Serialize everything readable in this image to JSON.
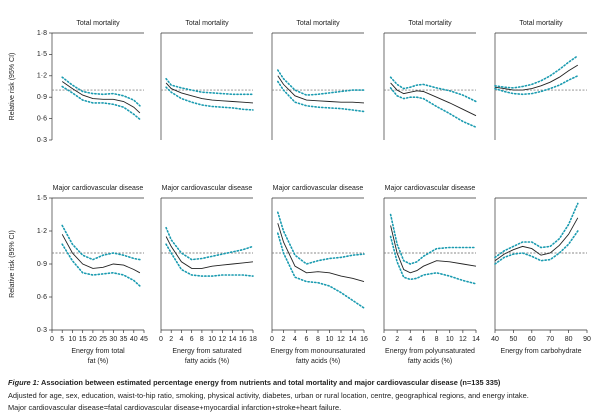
{
  "chart_data": [
    {
      "type": "line",
      "title": "Total mortality",
      "ylabel": "Relative risk (95% CI)",
      "x": [
        5,
        10,
        15,
        20,
        25,
        30,
        35,
        40,
        43
      ],
      "xlim": [
        0,
        45
      ],
      "ylim": [
        0.3,
        1.8
      ],
      "yticks": [
        {
          "value": 0.3,
          "label": "0·3"
        },
        {
          "value": 0.6,
          "label": "0·6"
        },
        {
          "value": 0.9,
          "label": "0·9"
        },
        {
          "value": 1.2,
          "label": "1·2"
        },
        {
          "value": 1.5,
          "label": "1·5"
        },
        {
          "value": 1.8,
          "label": "1·8"
        }
      ],
      "reference_line": 1,
      "series": [
        {
          "color": "#222222",
          "style": "solid",
          "values": [
            1.12,
            1.02,
            0.93,
            0.88,
            0.87,
            0.87,
            0.84,
            0.76,
            0.68
          ]
        },
        {
          "color": "#1a9bb0",
          "style": "dotted",
          "values": [
            1.05,
            0.96,
            0.86,
            0.82,
            0.82,
            0.8,
            0.76,
            0.66,
            0.59
          ]
        },
        {
          "color": "#1a9bb0",
          "style": "dotted",
          "values": [
            1.18,
            1.07,
            0.98,
            0.95,
            0.94,
            0.95,
            0.92,
            0.86,
            0.78
          ]
        }
      ]
    },
    {
      "type": "line",
      "title": "Total mortality",
      "x": [
        1,
        2,
        4,
        6,
        8,
        10,
        12,
        14,
        16,
        18
      ],
      "xlim": [
        0,
        18
      ],
      "ylim": [
        0.3,
        1.8
      ],
      "reference_line": 1,
      "series": [
        {
          "color": "#222222",
          "style": "solid",
          "values": [
            1.1,
            1.02,
            0.96,
            0.92,
            0.88,
            0.86,
            0.85,
            0.84,
            0.83,
            0.82
          ]
        },
        {
          "color": "#1a9bb0",
          "style": "dotted",
          "values": [
            1.04,
            0.97,
            0.88,
            0.83,
            0.79,
            0.77,
            0.76,
            0.75,
            0.73,
            0.72
          ]
        },
        {
          "color": "#1a9bb0",
          "style": "dotted",
          "values": [
            1.16,
            1.07,
            1.03,
            1.0,
            0.97,
            0.96,
            0.95,
            0.94,
            0.94,
            0.94
          ]
        }
      ]
    },
    {
      "type": "line",
      "title": "Total mortality",
      "x": [
        1,
        2,
        4,
        6,
        8,
        10,
        12,
        14,
        16
      ],
      "xlim": [
        0,
        16
      ],
      "ylim": [
        0.3,
        1.8
      ],
      "reference_line": 1,
      "series": [
        {
          "color": "#222222",
          "style": "solid",
          "values": [
            1.2,
            1.08,
            0.92,
            0.86,
            0.85,
            0.84,
            0.83,
            0.83,
            0.82
          ]
        },
        {
          "color": "#1a9bb0",
          "style": "dotted",
          "values": [
            1.12,
            1.0,
            0.83,
            0.78,
            0.76,
            0.75,
            0.74,
            0.72,
            0.7
          ]
        },
        {
          "color": "#1a9bb0",
          "style": "dotted",
          "values": [
            1.28,
            1.16,
            1.0,
            0.93,
            0.94,
            0.96,
            0.98,
            1.0,
            1.0
          ]
        }
      ]
    },
    {
      "type": "line",
      "title": "Total mortality",
      "x": [
        1,
        2,
        3,
        4,
        5,
        6,
        8,
        10,
        12,
        14
      ],
      "xlim": [
        0,
        14
      ],
      "ylim": [
        0.3,
        1.8
      ],
      "reference_line": 1,
      "series": [
        {
          "color": "#222222",
          "style": "solid",
          "values": [
            1.1,
            1.0,
            0.95,
            0.97,
            0.99,
            0.98,
            0.9,
            0.82,
            0.73,
            0.64
          ]
        },
        {
          "color": "#1a9bb0",
          "style": "dotted",
          "values": [
            1.03,
            0.92,
            0.88,
            0.9,
            0.9,
            0.88,
            0.77,
            0.67,
            0.56,
            0.48
          ]
        },
        {
          "color": "#1a9bb0",
          "style": "dotted",
          "values": [
            1.18,
            1.08,
            1.02,
            1.04,
            1.07,
            1.08,
            1.03,
            0.99,
            0.93,
            0.84
          ]
        }
      ]
    },
    {
      "type": "line",
      "title": "Total mortality",
      "x": [
        40,
        45,
        50,
        55,
        60,
        65,
        70,
        75,
        80,
        85
      ],
      "xlim": [
        40,
        90
      ],
      "ylim": [
        0.3,
        1.8
      ],
      "reference_line": 1,
      "series": [
        {
          "color": "#222222",
          "style": "solid",
          "values": [
            1.04,
            1.02,
            1.0,
            1.0,
            1.02,
            1.06,
            1.11,
            1.18,
            1.27,
            1.35
          ]
        },
        {
          "color": "#1a9bb0",
          "style": "dotted",
          "values": [
            1.02,
            0.98,
            0.95,
            0.94,
            0.95,
            0.98,
            1.02,
            1.07,
            1.14,
            1.2
          ]
        },
        {
          "color": "#1a9bb0",
          "style": "dotted",
          "values": [
            1.06,
            1.04,
            1.03,
            1.05,
            1.08,
            1.13,
            1.2,
            1.29,
            1.39,
            1.48
          ]
        }
      ]
    },
    {
      "type": "line",
      "title": "Major cardiovascular disease",
      "ylabel": "Relative risk (95% CI)",
      "xlabel": [
        "Energy from total",
        "fat (%)"
      ],
      "x": [
        5,
        10,
        15,
        20,
        25,
        30,
        35,
        40,
        43
      ],
      "xlim": [
        0,
        45
      ],
      "xticks": [
        0,
        5,
        10,
        15,
        20,
        25,
        30,
        35,
        40,
        45
      ],
      "ylim": [
        0.3,
        1.5
      ],
      "yticks": [
        {
          "value": 0.3,
          "label": "0·3"
        },
        {
          "value": 0.6,
          "label": "0·6"
        },
        {
          "value": 0.9,
          "label": "0·9"
        },
        {
          "value": 1.2,
          "label": "1·2"
        },
        {
          "value": 1.5,
          "label": "1·5"
        }
      ],
      "reference_line": 1,
      "series": [
        {
          "color": "#222222",
          "style": "solid",
          "values": [
            1.17,
            1.0,
            0.9,
            0.86,
            0.87,
            0.9,
            0.89,
            0.85,
            0.82
          ]
        },
        {
          "color": "#1a9bb0",
          "style": "dotted",
          "values": [
            1.08,
            0.93,
            0.82,
            0.8,
            0.81,
            0.82,
            0.8,
            0.75,
            0.7
          ]
        },
        {
          "color": "#1a9bb0",
          "style": "dotted",
          "values": [
            1.25,
            1.08,
            0.98,
            0.94,
            0.98,
            1.0,
            0.98,
            0.95,
            0.94
          ]
        }
      ]
    },
    {
      "type": "line",
      "title": "Major cardiovascular disease",
      "xlabel": [
        "Energy from saturated",
        "fatty acids (%)"
      ],
      "x": [
        1,
        2,
        4,
        6,
        8,
        10,
        12,
        14,
        16,
        18
      ],
      "xlim": [
        0,
        18
      ],
      "xticks": [
        0,
        2,
        4,
        6,
        8,
        10,
        12,
        14,
        16,
        18
      ],
      "ylim": [
        0.3,
        1.5
      ],
      "reference_line": 1,
      "series": [
        {
          "color": "#222222",
          "style": "solid",
          "values": [
            1.15,
            1.06,
            0.92,
            0.86,
            0.86,
            0.88,
            0.89,
            0.9,
            0.91,
            0.92
          ]
        },
        {
          "color": "#1a9bb0",
          "style": "dotted",
          "values": [
            1.08,
            1.0,
            0.85,
            0.8,
            0.79,
            0.79,
            0.8,
            0.8,
            0.8,
            0.79
          ]
        },
        {
          "color": "#1a9bb0",
          "style": "dotted",
          "values": [
            1.23,
            1.12,
            1.0,
            0.94,
            0.95,
            0.97,
            0.99,
            1.01,
            1.03,
            1.06
          ]
        }
      ]
    },
    {
      "type": "line",
      "title": "Major cardiovascular disease",
      "xlabel": [
        "Energy from monounsaturated",
        "fatty acids (%)"
      ],
      "x": [
        1,
        2,
        4,
        6,
        8,
        10,
        12,
        14,
        16
      ],
      "xlim": [
        0,
        16
      ],
      "xticks": [
        0,
        2,
        4,
        6,
        8,
        10,
        12,
        14,
        16
      ],
      "ylim": [
        0.3,
        1.5
      ],
      "reference_line": 1,
      "series": [
        {
          "color": "#222222",
          "style": "solid",
          "values": [
            1.27,
            1.1,
            0.88,
            0.82,
            0.83,
            0.82,
            0.79,
            0.77,
            0.74
          ]
        },
        {
          "color": "#1a9bb0",
          "style": "dotted",
          "values": [
            1.18,
            1.0,
            0.78,
            0.74,
            0.73,
            0.7,
            0.64,
            0.57,
            0.5
          ]
        },
        {
          "color": "#1a9bb0",
          "style": "dotted",
          "values": [
            1.37,
            1.2,
            0.98,
            0.9,
            0.93,
            0.95,
            0.96,
            0.98,
            0.99
          ]
        }
      ]
    },
    {
      "type": "line",
      "title": "Major cardiovascular disease",
      "xlabel": [
        "Energy from polyunsaturated",
        "fatty acids (%)"
      ],
      "x": [
        1,
        2,
        3,
        4,
        5,
        6,
        8,
        10,
        12,
        14
      ],
      "xlim": [
        0,
        14
      ],
      "xticks": [
        0,
        2,
        4,
        6,
        8,
        10,
        12,
        14
      ],
      "ylim": [
        0.3,
        1.5
      ],
      "reference_line": 1,
      "series": [
        {
          "color": "#222222",
          "style": "solid",
          "values": [
            1.25,
            1.0,
            0.85,
            0.82,
            0.84,
            0.88,
            0.93,
            0.92,
            0.9,
            0.88
          ]
        },
        {
          "color": "#1a9bb0",
          "style": "dotted",
          "values": [
            1.15,
            0.92,
            0.78,
            0.76,
            0.77,
            0.8,
            0.82,
            0.79,
            0.75,
            0.72
          ]
        },
        {
          "color": "#1a9bb0",
          "style": "dotted",
          "values": [
            1.35,
            1.08,
            0.93,
            0.9,
            0.92,
            0.97,
            1.04,
            1.05,
            1.05,
            1.05
          ]
        }
      ]
    },
    {
      "type": "line",
      "title": "",
      "xlabel": [
        "Energy from carbohydrate"
      ],
      "x": [
        40,
        45,
        50,
        55,
        60,
        65,
        70,
        75,
        80,
        85
      ],
      "xlim": [
        40,
        90
      ],
      "xticks": [
        40,
        50,
        60,
        70,
        80,
        90
      ],
      "ylim": [
        0.3,
        1.5
      ],
      "reference_line": 1,
      "series": [
        {
          "color": "#222222",
          "style": "solid",
          "values": [
            0.93,
            0.99,
            1.03,
            1.06,
            1.04,
            0.98,
            1.0,
            1.07,
            1.17,
            1.32
          ]
        },
        {
          "color": "#1a9bb0",
          "style": "dotted",
          "values": [
            0.9,
            0.96,
            0.99,
            1.0,
            0.97,
            0.93,
            0.94,
            1.0,
            1.08,
            1.2
          ]
        },
        {
          "color": "#1a9bb0",
          "style": "dotted",
          "values": [
            0.96,
            1.02,
            1.06,
            1.1,
            1.1,
            1.05,
            1.06,
            1.13,
            1.26,
            1.45
          ]
        }
      ]
    }
  ],
  "caption": {
    "label": "Figure 1:",
    "title": " Association between estimated percentage energy from nutrients and total mortality and major cardiovascular disease (n=135 335)",
    "lines": [
      "Adjusted for age, sex, education, waist-to-hip ratio, smoking, physical activity, diabetes, urban or rural location, centre, geographical regions, and energy intake.",
      "Major cardiovascular disease=fatal cardiovascular disease+myocardial infarction+stroke+heart failure."
    ]
  }
}
